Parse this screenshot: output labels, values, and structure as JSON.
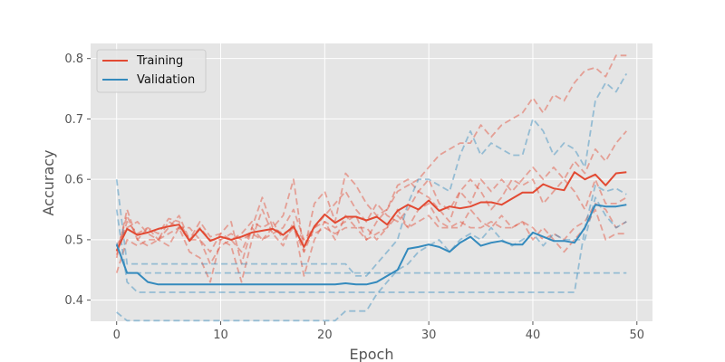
{
  "chart_data": {
    "type": "line",
    "title": "",
    "xlabel": "Epoch",
    "ylabel": "Accuracy",
    "xlim": [
      -2.5,
      51.5
    ],
    "ylim": [
      0.365,
      0.825
    ],
    "xticks": [
      0,
      10,
      20,
      30,
      40,
      50
    ],
    "yticks": [
      0.4,
      0.5,
      0.6,
      0.7,
      0.8
    ],
    "grid": true,
    "legend": "top-left",
    "background": "#e5e5e5",
    "colors": {
      "training": "#e24a33",
      "validation": "#348abd"
    },
    "series": [
      {
        "name": "Training",
        "style": "solid",
        "group": "training",
        "x": [
          0,
          1,
          2,
          3,
          4,
          5,
          6,
          7,
          8,
          9,
          10,
          11,
          12,
          13,
          14,
          15,
          16,
          17,
          18,
          19,
          20,
          21,
          22,
          23,
          24,
          25,
          26,
          27,
          28,
          29,
          30,
          31,
          32,
          33,
          34,
          35,
          36,
          37,
          38,
          39,
          40,
          41,
          42,
          43,
          44,
          45,
          46,
          47,
          48,
          49
        ],
        "y": [
          0.482,
          0.518,
          0.508,
          0.512,
          0.518,
          0.522,
          0.525,
          0.498,
          0.518,
          0.498,
          0.505,
          0.5,
          0.505,
          0.512,
          0.515,
          0.518,
          0.508,
          0.522,
          0.488,
          0.522,
          0.542,
          0.528,
          0.538,
          0.538,
          0.532,
          0.538,
          0.525,
          0.548,
          0.558,
          0.55,
          0.565,
          0.548,
          0.555,
          0.552,
          0.555,
          0.562,
          0.562,
          0.558,
          0.568,
          0.578,
          0.578,
          0.592,
          0.585,
          0.582,
          0.612,
          0.6,
          0.608,
          0.59,
          0.61,
          0.612
        ]
      },
      {
        "name": "Validation",
        "style": "solid",
        "group": "validation",
        "x": [
          0,
          1,
          2,
          3,
          4,
          5,
          6,
          7,
          8,
          9,
          10,
          11,
          12,
          13,
          14,
          15,
          16,
          17,
          18,
          19,
          20,
          21,
          22,
          23,
          24,
          25,
          26,
          27,
          28,
          29,
          30,
          31,
          32,
          33,
          34,
          35,
          36,
          37,
          38,
          39,
          40,
          41,
          42,
          43,
          44,
          45,
          46,
          47,
          48,
          49
        ],
        "y": [
          0.492,
          0.445,
          0.445,
          0.43,
          0.426,
          0.426,
          0.426,
          0.426,
          0.426,
          0.426,
          0.426,
          0.426,
          0.426,
          0.426,
          0.426,
          0.426,
          0.426,
          0.426,
          0.426,
          0.426,
          0.426,
          0.426,
          0.428,
          0.426,
          0.426,
          0.43,
          0.44,
          0.45,
          0.485,
          0.488,
          0.492,
          0.488,
          0.48,
          0.495,
          0.505,
          0.49,
          0.495,
          0.498,
          0.492,
          0.492,
          0.512,
          0.505,
          0.498,
          0.498,
          0.495,
          0.52,
          0.558,
          0.555,
          0.555,
          0.558
        ]
      },
      {
        "style": "dashed",
        "group": "training",
        "x": [
          0,
          1,
          2,
          3,
          4,
          5,
          6,
          7,
          8,
          9,
          10,
          11,
          12,
          13,
          14,
          15,
          16,
          17,
          18,
          19,
          20,
          21,
          22,
          23,
          24,
          25,
          26,
          27,
          28,
          29,
          30,
          31,
          32,
          33,
          34,
          35,
          36,
          37,
          38,
          39,
          40,
          41,
          42,
          43,
          44,
          45,
          46,
          47,
          48,
          49
        ],
        "y": [
          0.475,
          0.53,
          0.51,
          0.52,
          0.51,
          0.535,
          0.53,
          0.5,
          0.53,
          0.505,
          0.51,
          0.5,
          0.51,
          0.53,
          0.52,
          0.53,
          0.5,
          0.52,
          0.48,
          0.52,
          0.53,
          0.52,
          0.53,
          0.54,
          0.5,
          0.53,
          0.55,
          0.58,
          0.59,
          0.6,
          0.62,
          0.64,
          0.65,
          0.66,
          0.66,
          0.69,
          0.67,
          0.69,
          0.7,
          0.71,
          0.735,
          0.71,
          0.74,
          0.73,
          0.76,
          0.78,
          0.785,
          0.77,
          0.805,
          0.805
        ]
      },
      {
        "style": "dashed",
        "group": "training",
        "x": [
          0,
          1,
          2,
          3,
          4,
          5,
          6,
          7,
          8,
          9,
          10,
          11,
          12,
          13,
          14,
          15,
          16,
          17,
          18,
          19,
          20,
          21,
          22,
          23,
          24,
          25,
          26,
          27,
          28,
          29,
          30,
          31,
          32,
          33,
          34,
          35,
          36,
          37,
          38,
          39,
          40,
          41,
          42,
          43,
          44,
          45,
          46,
          47,
          48,
          49
        ],
        "y": [
          0.49,
          0.52,
          0.53,
          0.51,
          0.5,
          0.52,
          0.54,
          0.5,
          0.5,
          0.46,
          0.49,
          0.5,
          0.48,
          0.52,
          0.5,
          0.51,
          0.52,
          0.55,
          0.5,
          0.52,
          0.54,
          0.56,
          0.58,
          0.55,
          0.53,
          0.56,
          0.54,
          0.53,
          0.55,
          0.58,
          0.6,
          0.56,
          0.55,
          0.58,
          0.56,
          0.6,
          0.58,
          0.6,
          0.58,
          0.6,
          0.62,
          0.6,
          0.62,
          0.6,
          0.63,
          0.61,
          0.65,
          0.63,
          0.66,
          0.68
        ]
      },
      {
        "style": "dashed",
        "group": "training",
        "x": [
          0,
          1,
          2,
          3,
          4,
          5,
          6,
          7,
          8,
          9,
          10,
          11,
          12,
          13,
          14,
          15,
          16,
          17,
          18,
          19,
          20,
          21,
          22,
          23,
          24,
          25,
          26,
          27,
          28,
          29,
          30,
          31,
          32,
          33,
          34,
          35,
          36,
          37,
          38,
          39,
          40,
          41,
          42,
          43,
          44,
          45,
          46,
          47,
          48,
          49
        ],
        "y": [
          0.48,
          0.54,
          0.5,
          0.49,
          0.5,
          0.53,
          0.52,
          0.52,
          0.5,
          0.48,
          0.51,
          0.53,
          0.46,
          0.52,
          0.57,
          0.52,
          0.54,
          0.6,
          0.48,
          0.56,
          0.58,
          0.53,
          0.61,
          0.59,
          0.56,
          0.54,
          0.55,
          0.59,
          0.6,
          0.58,
          0.57,
          0.55,
          0.53,
          0.58,
          0.6,
          0.58,
          0.55,
          0.57,
          0.6,
          0.59,
          0.6,
          0.56,
          0.58,
          0.6,
          0.58,
          0.55,
          0.6,
          0.56,
          0.56,
          0.57
        ]
      },
      {
        "style": "dashed",
        "group": "training",
        "x": [
          0,
          1,
          2,
          3,
          4,
          5,
          6,
          7,
          8,
          9,
          10,
          11,
          12,
          13,
          14,
          15,
          16,
          17,
          18,
          19,
          20,
          21,
          22,
          23,
          24,
          25,
          26,
          27,
          28,
          29,
          30,
          31,
          32,
          33,
          34,
          35,
          36,
          37,
          38,
          39,
          40,
          41,
          42,
          43,
          44,
          45,
          46,
          47,
          48,
          49
        ],
        "y": [
          0.47,
          0.55,
          0.5,
          0.52,
          0.5,
          0.49,
          0.52,
          0.48,
          0.47,
          0.43,
          0.5,
          0.49,
          0.43,
          0.5,
          0.55,
          0.51,
          0.49,
          0.53,
          0.44,
          0.5,
          0.53,
          0.5,
          0.54,
          0.52,
          0.52,
          0.5,
          0.52,
          0.55,
          0.52,
          0.55,
          0.56,
          0.53,
          0.52,
          0.52,
          0.55,
          0.53,
          0.52,
          0.54,
          0.52,
          0.53,
          0.5,
          0.52,
          0.5,
          0.48,
          0.5,
          0.52,
          0.55,
          0.5,
          0.51,
          0.51
        ]
      },
      {
        "style": "dashed",
        "group": "training",
        "x": [
          0,
          1,
          2,
          3,
          4,
          5,
          6,
          7,
          8,
          9,
          10,
          11,
          12,
          13,
          14,
          15,
          16,
          17,
          18,
          19,
          20,
          21,
          22,
          23,
          24,
          25,
          26,
          27,
          28,
          29,
          30,
          31,
          32,
          33,
          34,
          35,
          36,
          37,
          38,
          39,
          40,
          41,
          42,
          43,
          44,
          45,
          46,
          47,
          48,
          49
        ],
        "y": [
          0.445,
          0.5,
          0.49,
          0.5,
          0.5,
          0.51,
          0.52,
          0.5,
          0.52,
          0.5,
          0.5,
          0.51,
          0.5,
          0.51,
          0.5,
          0.52,
          0.51,
          0.52,
          0.5,
          0.51,
          0.52,
          0.51,
          0.52,
          0.52,
          0.5,
          0.51,
          0.52,
          0.54,
          0.52,
          0.53,
          0.54,
          0.52,
          0.52,
          0.53,
          0.52,
          0.52,
          0.53,
          0.52,
          0.52,
          0.53,
          0.52,
          0.5,
          0.51,
          0.5,
          0.52,
          0.53,
          0.56,
          0.55,
          0.52,
          0.53
        ]
      },
      {
        "style": "dashed",
        "group": "validation",
        "x": [
          0,
          1,
          2,
          3,
          4,
          5,
          6,
          7,
          8,
          9,
          10,
          11,
          12,
          13,
          14,
          15,
          16,
          17,
          18,
          19,
          20,
          21,
          22,
          23,
          24,
          25,
          26,
          27,
          28,
          29,
          30,
          31,
          32,
          33,
          34,
          35,
          36,
          37,
          38,
          39,
          40,
          41,
          42,
          43,
          44,
          45,
          46,
          47,
          48,
          49
        ],
        "y": [
          0.6,
          0.46,
          0.46,
          0.46,
          0.46,
          0.46,
          0.46,
          0.46,
          0.46,
          0.46,
          0.46,
          0.46,
          0.46,
          0.46,
          0.46,
          0.46,
          0.46,
          0.46,
          0.46,
          0.46,
          0.46,
          0.46,
          0.46,
          0.44,
          0.44,
          0.46,
          0.48,
          0.5,
          0.56,
          0.6,
          0.6,
          0.59,
          0.58,
          0.64,
          0.68,
          0.64,
          0.66,
          0.65,
          0.64,
          0.64,
          0.7,
          0.68,
          0.64,
          0.66,
          0.65,
          0.62,
          0.73,
          0.76,
          0.745,
          0.775
        ]
      },
      {
        "style": "dashed",
        "group": "validation",
        "x": [
          0,
          1,
          2,
          3,
          4,
          5,
          6,
          7,
          8,
          9,
          10,
          11,
          12,
          13,
          14,
          15,
          16,
          17,
          18,
          19,
          20,
          21,
          22,
          23,
          24,
          25,
          26,
          27,
          28,
          29,
          30,
          31,
          32,
          33,
          34,
          35,
          36,
          37,
          38,
          39,
          40,
          41,
          42,
          43,
          44,
          45,
          46,
          47,
          48,
          49
        ],
        "y": [
          0.55,
          0.43,
          0.413,
          0.413,
          0.413,
          0.413,
          0.413,
          0.413,
          0.413,
          0.413,
          0.413,
          0.413,
          0.413,
          0.413,
          0.413,
          0.413,
          0.413,
          0.413,
          0.413,
          0.413,
          0.413,
          0.413,
          0.413,
          0.413,
          0.413,
          0.413,
          0.413,
          0.413,
          0.413,
          0.413,
          0.413,
          0.413,
          0.413,
          0.413,
          0.413,
          0.413,
          0.413,
          0.413,
          0.413,
          0.413,
          0.413,
          0.413,
          0.413,
          0.413,
          0.413,
          0.52,
          0.59,
          0.58,
          0.585,
          0.575
        ]
      },
      {
        "style": "dashed",
        "group": "validation",
        "x": [
          0,
          1,
          2,
          3,
          4,
          5,
          6,
          7,
          8,
          9,
          10,
          11,
          12,
          13,
          14,
          15,
          16,
          17,
          18,
          19,
          20,
          21,
          22,
          23,
          24,
          25,
          26,
          27,
          28,
          29,
          30,
          31,
          32,
          33,
          34,
          35,
          36,
          37,
          38,
          39,
          40,
          41,
          42,
          43,
          44,
          45,
          46,
          47,
          48,
          49
        ],
        "y": [
          0.38,
          0.366,
          0.366,
          0.366,
          0.366,
          0.366,
          0.366,
          0.366,
          0.366,
          0.366,
          0.366,
          0.366,
          0.366,
          0.366,
          0.366,
          0.366,
          0.366,
          0.366,
          0.366,
          0.366,
          0.366,
          0.366,
          0.382,
          0.382,
          0.382,
          0.41,
          0.43,
          0.45,
          0.46,
          0.48,
          0.49,
          0.5,
          0.48,
          0.5,
          0.51,
          0.5,
          0.52,
          0.5,
          0.49,
          0.5,
          0.51,
          0.49,
          0.51,
          0.5,
          0.5,
          0.5,
          0.57,
          0.54,
          0.52,
          0.53
        ]
      },
      {
        "style": "dashed",
        "group": "validation",
        "x": [
          0,
          1,
          2,
          3,
          4,
          5,
          6,
          7,
          8,
          9,
          10,
          11,
          12,
          13,
          14,
          15,
          16,
          17,
          18,
          19,
          20,
          21,
          22,
          23,
          24,
          25,
          26,
          27,
          28,
          29,
          30,
          31,
          32,
          33,
          34,
          35,
          36,
          37,
          38,
          39,
          40,
          41,
          42,
          43,
          44,
          45,
          46,
          47,
          48,
          49
        ],
        "y": [
          0.495,
          0.445,
          0.445,
          0.445,
          0.445,
          0.445,
          0.445,
          0.445,
          0.445,
          0.445,
          0.445,
          0.445,
          0.445,
          0.445,
          0.445,
          0.445,
          0.445,
          0.445,
          0.445,
          0.445,
          0.445,
          0.445,
          0.445,
          0.445,
          0.445,
          0.445,
          0.445,
          0.445,
          0.445,
          0.445,
          0.445,
          0.445,
          0.445,
          0.445,
          0.445,
          0.445,
          0.445,
          0.445,
          0.445,
          0.445,
          0.445,
          0.445,
          0.445,
          0.445,
          0.445,
          0.445,
          0.445,
          0.445,
          0.445,
          0.445
        ]
      }
    ]
  }
}
